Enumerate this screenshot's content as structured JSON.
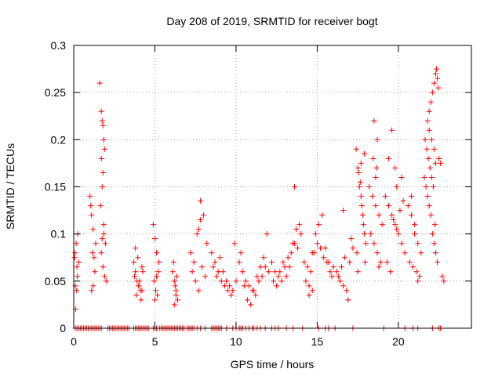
{
  "chart_data": {
    "type": "scatter",
    "title": "Day 208 of 2019, SRMTID for receiver bogt",
    "xlabel": "GPS time / hours",
    "ylabel": "SRMTID / TECUs",
    "xlim": [
      0,
      24.5
    ],
    "ylim": [
      0,
      0.3
    ],
    "xticks": [
      0,
      5,
      10,
      15,
      20
    ],
    "xtick_labels": [
      "0",
      "5",
      "10",
      "15",
      "20"
    ],
    "yticks": [
      0,
      0.05,
      0.1,
      0.15,
      0.2,
      0.25,
      0.3
    ],
    "ytick_labels": [
      "0",
      "0.05",
      "0.1",
      "0.15",
      "0.2",
      "0.25",
      "0.3"
    ],
    "grid": true,
    "marker": "+",
    "color": "#ff0000",
    "series": [
      {
        "name": "SRMTID",
        "x": [
          0.05,
          0.1,
          0.15,
          0.2,
          0.25,
          0.12,
          0.18,
          0.08,
          0.22,
          0.3,
          1.0,
          1.1,
          1.2,
          1.05,
          1.15,
          1.25,
          1.3,
          1.1,
          1.2,
          1.35,
          1.6,
          1.7,
          1.75,
          1.8,
          1.85,
          1.9,
          1.7,
          1.8,
          1.75,
          1.65,
          1.85,
          1.95,
          1.7,
          1.8,
          1.9,
          2.0,
          1.75,
          1.85,
          3.7,
          3.8,
          3.9,
          4.0,
          4.1,
          4.2,
          3.75,
          3.85,
          3.95,
          4.05,
          4.15,
          4.25,
          3.8,
          4.0,
          4.2,
          4.9,
          5.0,
          5.1,
          5.2,
          4.95,
          5.05,
          5.15,
          5.25,
          5.0,
          5.1,
          6.1,
          6.2,
          6.3,
          6.4,
          6.15,
          6.25,
          6.35,
          6.2,
          6.3,
          7.2,
          7.4,
          7.6,
          7.8,
          8.0,
          8.2,
          7.3,
          7.5,
          7.7,
          7.9,
          8.1,
          7.7,
          7.8,
          8.5,
          8.7,
          8.9,
          9.1,
          9.3,
          9.5,
          9.7,
          9.9,
          8.6,
          8.8,
          9.0,
          9.2,
          9.4,
          9.6,
          9.8,
          10.0,
          10.2,
          10.4,
          10.6,
          10.8,
          11.0,
          11.2,
          11.4,
          11.6,
          11.8,
          12.0,
          10.3,
          10.5,
          10.7,
          10.9,
          11.1,
          11.3,
          11.5,
          11.7,
          11.9,
          12.2,
          12.4,
          12.6,
          12.8,
          13.0,
          13.2,
          13.4,
          13.6,
          13.8,
          14.0,
          12.3,
          12.5,
          12.7,
          12.9,
          13.1,
          13.3,
          13.5,
          13.7,
          13.9,
          13.6,
          14.2,
          14.4,
          14.6,
          14.8,
          15.0,
          15.2,
          15.4,
          15.6,
          15.8,
          16.0,
          14.3,
          14.5,
          14.7,
          14.9,
          15.1,
          15.3,
          15.5,
          15.7,
          15.9,
          14.5,
          14.7,
          16.2,
          16.4,
          16.6,
          16.8,
          17.0,
          17.2,
          16.3,
          16.5,
          16.7,
          16.9,
          17.1,
          16.6,
          17.4,
          17.5,
          17.6,
          17.7,
          17.8,
          17.9,
          18.0,
          17.45,
          17.55,
          17.65,
          17.75,
          17.85,
          17.95,
          17.5,
          17.7,
          17.9,
          18.2,
          18.4,
          18.6,
          18.8,
          19.0,
          18.3,
          18.5,
          18.7,
          18.9,
          18.5,
          18.7,
          18.45,
          18.65,
          18.6,
          18.8,
          19.2,
          19.4,
          19.6,
          19.8,
          20.0,
          20.2,
          20.4,
          19.3,
          19.5,
          19.7,
          19.9,
          20.1,
          20.3,
          19.4,
          19.8,
          20.2,
          19.6,
          19.9,
          20.6,
          20.8,
          21.0,
          21.2,
          21.4,
          20.7,
          20.9,
          21.1,
          21.3,
          20.8,
          21.0,
          21.2,
          21.6,
          21.7,
          21.8,
          21.9,
          22.0,
          22.1,
          22.2,
          22.3,
          22.4,
          21.65,
          21.75,
          21.85,
          21.95,
          22.05,
          22.15,
          22.25,
          21.8,
          21.9,
          22.0,
          22.1,
          22.2,
          22.3,
          22.35,
          22.4,
          22.45,
          21.9,
          22.05,
          22.2,
          22.3,
          22.5,
          22.6,
          22.7,
          22.8,
          0.1,
          0.2,
          0.3,
          0.4,
          0.5,
          0.6,
          0.7,
          0.8,
          0.9,
          1.0,
          1.1,
          1.2,
          1.3,
          1.4,
          1.5,
          1.6,
          1.7,
          2.1,
          2.2,
          2.3,
          2.4,
          2.5,
          2.6,
          2.7,
          2.8,
          2.9,
          3.0,
          3.1,
          3.2,
          3.3,
          3.4,
          3.7,
          3.8,
          3.9,
          4.0,
          4.1,
          4.2,
          4.3,
          4.4,
          4.5,
          4.6,
          4.9,
          5.0,
          5.1,
          5.3,
          5.4,
          5.5,
          5.6,
          5.7,
          5.8,
          5.9,
          6.0,
          6.1,
          6.2,
          6.3,
          6.4,
          6.5,
          6.6,
          6.7,
          6.8,
          7.0,
          7.1,
          7.2,
          7.3,
          7.4,
          7.6,
          7.8,
          8.1,
          8.5,
          8.6,
          8.7,
          8.8,
          8.9,
          9.0,
          9.1,
          9.4,
          9.8,
          10.0,
          10.2,
          10.3,
          10.4,
          10.6,
          10.8,
          11.0,
          11.1,
          11.3,
          11.5,
          11.8,
          12.2,
          12.4,
          12.6,
          13.1,
          13.5,
          14.1,
          15.1,
          15.5,
          15.7,
          16.1,
          17.2,
          19.1,
          20.4,
          20.9,
          21.2,
          22.1,
          22.5,
          22.6
        ],
        "y": [
          0.075,
          0.045,
          0.09,
          0.065,
          0.1,
          0.02,
          0.04,
          0.08,
          0.055,
          0.07,
          0.14,
          0.12,
          0.105,
          0.13,
          0.08,
          0.075,
          0.06,
          0.04,
          0.045,
          0.09,
          0.26,
          0.23,
          0.22,
          0.215,
          0.2,
          0.19,
          0.18,
          0.165,
          0.15,
          0.13,
          0.1,
          0.09,
          0.08,
          0.065,
          0.055,
          0.05,
          0.095,
          0.11,
          0.07,
          0.06,
          0.05,
          0.045,
          0.04,
          0.065,
          0.055,
          0.035,
          0.075,
          0.05,
          0.03,
          0.06,
          0.085,
          0.045,
          0.04,
          0.11,
          0.095,
          0.08,
          0.06,
          0.05,
          0.04,
          0.035,
          0.07,
          0.03,
          0.055,
          0.06,
          0.05,
          0.04,
          0.03,
          0.07,
          0.045,
          0.055,
          0.025,
          0.035,
          0.08,
          0.07,
          0.1,
          0.135,
          0.12,
          0.09,
          0.06,
          0.05,
          0.04,
          0.065,
          0.055,
          0.105,
          0.115,
          0.08,
          0.07,
          0.06,
          0.05,
          0.045,
          0.04,
          0.035,
          0.09,
          0.065,
          0.055,
          0.075,
          0.06,
          0.05,
          0.045,
          0.04,
          0.05,
          0.07,
          0.06,
          0.05,
          0.045,
          0.04,
          0.035,
          0.05,
          0.055,
          0.065,
          0.06,
          0.08,
          0.045,
          0.03,
          0.025,
          0.04,
          0.055,
          0.065,
          0.075,
          0.1,
          0.07,
          0.06,
          0.055,
          0.05,
          0.065,
          0.075,
          0.08,
          0.09,
          0.085,
          0.1,
          0.05,
          0.045,
          0.06,
          0.07,
          0.055,
          0.065,
          0.09,
          0.105,
          0.11,
          0.15,
          0.07,
          0.065,
          0.06,
          0.08,
          0.09,
          0.085,
          0.075,
          0.07,
          0.06,
          0.065,
          0.05,
          0.045,
          0.08,
          0.1,
          0.11,
          0.12,
          0.085,
          0.07,
          0.055,
          0.035,
          0.04,
          0.06,
          0.05,
          0.045,
          0.04,
          0.07,
          0.085,
          0.055,
          0.065,
          0.075,
          0.03,
          0.095,
          0.125,
          0.19,
          0.17,
          0.15,
          0.14,
          0.12,
          0.1,
          0.09,
          0.08,
          0.165,
          0.155,
          0.13,
          0.11,
          0.07,
          0.06,
          0.175,
          0.185,
          0.15,
          0.14,
          0.13,
          0.12,
          0.11,
          0.1,
          0.09,
          0.08,
          0.07,
          0.22,
          0.2,
          0.18,
          0.17,
          0.16,
          0.065,
          0.14,
          0.13,
          0.12,
          0.11,
          0.1,
          0.09,
          0.08,
          0.07,
          0.06,
          0.115,
          0.105,
          0.125,
          0.135,
          0.18,
          0.17,
          0.16,
          0.21,
          0.15,
          0.13,
          0.12,
          0.1,
          0.09,
          0.08,
          0.07,
          0.065,
          0.06,
          0.055,
          0.14,
          0.11,
          0.05,
          0.16,
          0.15,
          0.14,
          0.13,
          0.12,
          0.1,
          0.09,
          0.08,
          0.07,
          0.2,
          0.19,
          0.18,
          0.17,
          0.16,
          0.15,
          0.11,
          0.22,
          0.23,
          0.24,
          0.25,
          0.26,
          0.27,
          0.275,
          0.265,
          0.255,
          0.21,
          0.2,
          0.19,
          0.175,
          0.18,
          0.175,
          0.055,
          0.05,
          0,
          0,
          0,
          0,
          0,
          0,
          0,
          0,
          0,
          0,
          0,
          0,
          0,
          0,
          0,
          0,
          0,
          0,
          0,
          0,
          0,
          0,
          0,
          0,
          0,
          0,
          0,
          0,
          0,
          0,
          0,
          0,
          0,
          0,
          0,
          0,
          0,
          0,
          0,
          0,
          0,
          0,
          0,
          0,
          0,
          0,
          0,
          0,
          0,
          0,
          0,
          0,
          0,
          0,
          0,
          0,
          0,
          0,
          0,
          0,
          0,
          0,
          0,
          0,
          0,
          0,
          0,
          0,
          0,
          0,
          0,
          0,
          0,
          0,
          0,
          0,
          0,
          0,
          0,
          0,
          0,
          0,
          0,
          0,
          0,
          0,
          0,
          0,
          0,
          0,
          0,
          0,
          0,
          0,
          0,
          0,
          0,
          0,
          0,
          0,
          0,
          0,
          0,
          0,
          0,
          0
        ]
      }
    ]
  }
}
